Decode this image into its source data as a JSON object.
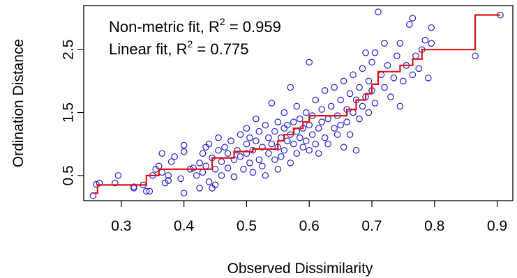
{
  "chart_data": {
    "type": "scatter",
    "title": "",
    "xlabel": "Observed Dissimilarity",
    "ylabel": "Ordination Distance",
    "xlim": [
      0.24,
      0.925
    ],
    "ylim": [
      0.1,
      3.2
    ],
    "xticks": [
      0.3,
      0.4,
      0.5,
      0.6,
      0.7,
      0.8,
      0.9
    ],
    "xtick_labels": [
      "0.3",
      "0.4",
      "0.5",
      "0.6",
      "0.7",
      "0.8",
      "0.9"
    ],
    "yticks": [
      0.5,
      1.5,
      2.5
    ],
    "ytick_labels": [
      "0.5",
      "1.5",
      "2.5"
    ],
    "grid": false,
    "legend": {
      "placement": "top-left",
      "lines": [
        {
          "prefix": "Non-metric fit, R",
          "sup": "2",
          "suffix": " = 0.959"
        },
        {
          "prefix": "Linear fit, R",
          "sup": "2",
          "suffix": " = 0.775"
        }
      ]
    },
    "series": [
      {
        "kind": "points",
        "marker": "open-circle",
        "color": "#2020d0",
        "points": [
          [
            0.255,
            0.18
          ],
          [
            0.26,
            0.36
          ],
          [
            0.265,
            0.38
          ],
          [
            0.29,
            0.38
          ],
          [
            0.295,
            0.5
          ],
          [
            0.32,
            0.32
          ],
          [
            0.32,
            0.3
          ],
          [
            0.335,
            0.35
          ],
          [
            0.34,
            0.25
          ],
          [
            0.345,
            0.25
          ],
          [
            0.35,
            0.5
          ],
          [
            0.355,
            0.6
          ],
          [
            0.36,
            0.65
          ],
          [
            0.365,
            0.55
          ],
          [
            0.365,
            0.85
          ],
          [
            0.37,
            0.38
          ],
          [
            0.375,
            0.5
          ],
          [
            0.375,
            0.42
          ],
          [
            0.38,
            0.72
          ],
          [
            0.385,
            0.8
          ],
          [
            0.395,
            0.45
          ],
          [
            0.4,
            0.98
          ],
          [
            0.4,
            0.88
          ],
          [
            0.4,
            0.22
          ],
          [
            0.41,
            0.6
          ],
          [
            0.415,
            0.62
          ],
          [
            0.42,
            0.5
          ],
          [
            0.425,
            0.7
          ],
          [
            0.425,
            0.3
          ],
          [
            0.43,
            0.85
          ],
          [
            0.43,
            0.55
          ],
          [
            0.435,
            0.95
          ],
          [
            0.435,
            0.65
          ],
          [
            0.44,
            1.0
          ],
          [
            0.44,
            0.4
          ],
          [
            0.445,
            0.78
          ],
          [
            0.445,
            0.3
          ],
          [
            0.45,
            0.6
          ],
          [
            0.45,
            0.35
          ],
          [
            0.455,
            0.9
          ],
          [
            0.455,
            1.1
          ],
          [
            0.46,
            0.72
          ],
          [
            0.46,
            0.5
          ],
          [
            0.465,
            0.95
          ],
          [
            0.47,
            0.85
          ],
          [
            0.47,
            0.62
          ],
          [
            0.475,
            1.05
          ],
          [
            0.48,
            0.75
          ],
          [
            0.48,
            0.48
          ],
          [
            0.485,
            0.9
          ],
          [
            0.49,
            0.8
          ],
          [
            0.49,
            1.15
          ],
          [
            0.495,
            0.6
          ],
          [
            0.5,
            1.0
          ],
          [
            0.5,
            0.85
          ],
          [
            0.5,
            1.25
          ],
          [
            0.505,
            0.7
          ],
          [
            0.505,
            1.1
          ],
          [
            0.51,
            0.55
          ],
          [
            0.51,
            0.9
          ],
          [
            0.515,
            1.05
          ],
          [
            0.515,
            1.4
          ],
          [
            0.52,
            0.75
          ],
          [
            0.52,
            1.2
          ],
          [
            0.525,
            0.65
          ],
          [
            0.525,
            0.95
          ],
          [
            0.53,
            1.3
          ],
          [
            0.53,
            0.5
          ],
          [
            0.535,
            1.1
          ],
          [
            0.535,
            0.85
          ],
          [
            0.54,
            1.0
          ],
          [
            0.54,
            1.65
          ],
          [
            0.545,
            0.75
          ],
          [
            0.545,
            1.2
          ],
          [
            0.55,
            0.95
          ],
          [
            0.55,
            1.35
          ],
          [
            0.55,
            0.6
          ],
          [
            0.555,
            1.1
          ],
          [
            0.555,
            0.8
          ],
          [
            0.56,
            1.25
          ],
          [
            0.56,
            1.5
          ],
          [
            0.56,
            0.9
          ],
          [
            0.565,
            1.05
          ],
          [
            0.565,
            1.3
          ],
          [
            0.57,
            0.7
          ],
          [
            0.57,
            1.15
          ],
          [
            0.57,
            1.9
          ],
          [
            0.575,
            1.0
          ],
          [
            0.575,
            1.35
          ],
          [
            0.58,
            1.2
          ],
          [
            0.58,
            0.85
          ],
          [
            0.58,
            1.6
          ],
          [
            0.585,
            1.1
          ],
          [
            0.585,
            1.4
          ],
          [
            0.59,
            0.95
          ],
          [
            0.59,
            1.25
          ],
          [
            0.595,
            1.5
          ],
          [
            0.595,
            1.05
          ],
          [
            0.6,
            1.3
          ],
          [
            0.6,
            0.9
          ],
          [
            0.6,
            2.3
          ],
          [
            0.605,
            1.15
          ],
          [
            0.605,
            1.45
          ],
          [
            0.61,
            1.0
          ],
          [
            0.61,
            1.7
          ],
          [
            0.615,
            1.25
          ],
          [
            0.615,
            0.85
          ],
          [
            0.62,
            1.55
          ],
          [
            0.62,
            1.35
          ],
          [
            0.625,
            1.1
          ],
          [
            0.625,
            1.85
          ],
          [
            0.63,
            1.4
          ],
          [
            0.63,
            1.0
          ],
          [
            0.635,
            1.6
          ],
          [
            0.64,
            1.25
          ],
          [
            0.64,
            1.9
          ],
          [
            0.645,
            1.45
          ],
          [
            0.645,
            1.15
          ],
          [
            0.65,
            1.7
          ],
          [
            0.65,
            1.3
          ],
          [
            0.655,
            0.95
          ],
          [
            0.655,
            2.0
          ],
          [
            0.66,
            1.55
          ],
          [
            0.66,
            1.35
          ],
          [
            0.665,
            1.8
          ],
          [
            0.665,
            1.15
          ],
          [
            0.67,
            2.1
          ],
          [
            0.67,
            1.5
          ],
          [
            0.675,
            1.7
          ],
          [
            0.675,
            0.9
          ],
          [
            0.68,
            1.9
          ],
          [
            0.68,
            1.4
          ],
          [
            0.685,
            2.2
          ],
          [
            0.685,
            1.6
          ],
          [
            0.69,
            1.75
          ],
          [
            0.69,
            2.45
          ],
          [
            0.695,
            1.5
          ],
          [
            0.695,
            2.0
          ],
          [
            0.7,
            1.85
          ],
          [
            0.7,
            2.3
          ],
          [
            0.705,
            1.65
          ],
          [
            0.705,
            2.45
          ],
          [
            0.71,
            3.1
          ],
          [
            0.715,
            2.1
          ],
          [
            0.72,
            1.9
          ],
          [
            0.72,
            2.6
          ],
          [
            0.725,
            2.25
          ],
          [
            0.73,
            1.75
          ],
          [
            0.735,
            2.05
          ],
          [
            0.74,
            2.4
          ],
          [
            0.745,
            1.6
          ],
          [
            0.745,
            2.6
          ],
          [
            0.75,
            2.0
          ],
          [
            0.755,
            2.25
          ],
          [
            0.76,
            2.9
          ],
          [
            0.765,
            2.1
          ],
          [
            0.765,
            3.0
          ],
          [
            0.77,
            2.4
          ],
          [
            0.775,
            2.2
          ],
          [
            0.78,
            2.5
          ],
          [
            0.785,
            2.65
          ],
          [
            0.79,
            2.05
          ],
          [
            0.795,
            2.6
          ],
          [
            0.795,
            2.85
          ],
          [
            0.865,
            2.4
          ],
          [
            0.905,
            3.05
          ]
        ]
      },
      {
        "kind": "step",
        "color": "#e01010",
        "points": [
          [
            0.255,
            0.22
          ],
          [
            0.262,
            0.22
          ],
          [
            0.262,
            0.35
          ],
          [
            0.34,
            0.35
          ],
          [
            0.34,
            0.5
          ],
          [
            0.36,
            0.5
          ],
          [
            0.36,
            0.6
          ],
          [
            0.445,
            0.6
          ],
          [
            0.445,
            0.78
          ],
          [
            0.48,
            0.78
          ],
          [
            0.48,
            0.88
          ],
          [
            0.51,
            0.88
          ],
          [
            0.51,
            0.92
          ],
          [
            0.55,
            0.92
          ],
          [
            0.55,
            1.05
          ],
          [
            0.56,
            1.05
          ],
          [
            0.56,
            1.15
          ],
          [
            0.575,
            1.15
          ],
          [
            0.575,
            1.25
          ],
          [
            0.59,
            1.25
          ],
          [
            0.59,
            1.35
          ],
          [
            0.6,
            1.35
          ],
          [
            0.6,
            1.45
          ],
          [
            0.66,
            1.45
          ],
          [
            0.66,
            1.55
          ],
          [
            0.675,
            1.55
          ],
          [
            0.675,
            1.7
          ],
          [
            0.69,
            1.7
          ],
          [
            0.69,
            1.8
          ],
          [
            0.7,
            1.8
          ],
          [
            0.7,
            1.95
          ],
          [
            0.71,
            1.95
          ],
          [
            0.71,
            2.15
          ],
          [
            0.745,
            2.15
          ],
          [
            0.745,
            2.25
          ],
          [
            0.765,
            2.25
          ],
          [
            0.765,
            2.35
          ],
          [
            0.78,
            2.35
          ],
          [
            0.78,
            2.5
          ],
          [
            0.865,
            2.5
          ],
          [
            0.865,
            3.05
          ],
          [
            0.905,
            3.05
          ]
        ]
      }
    ]
  }
}
